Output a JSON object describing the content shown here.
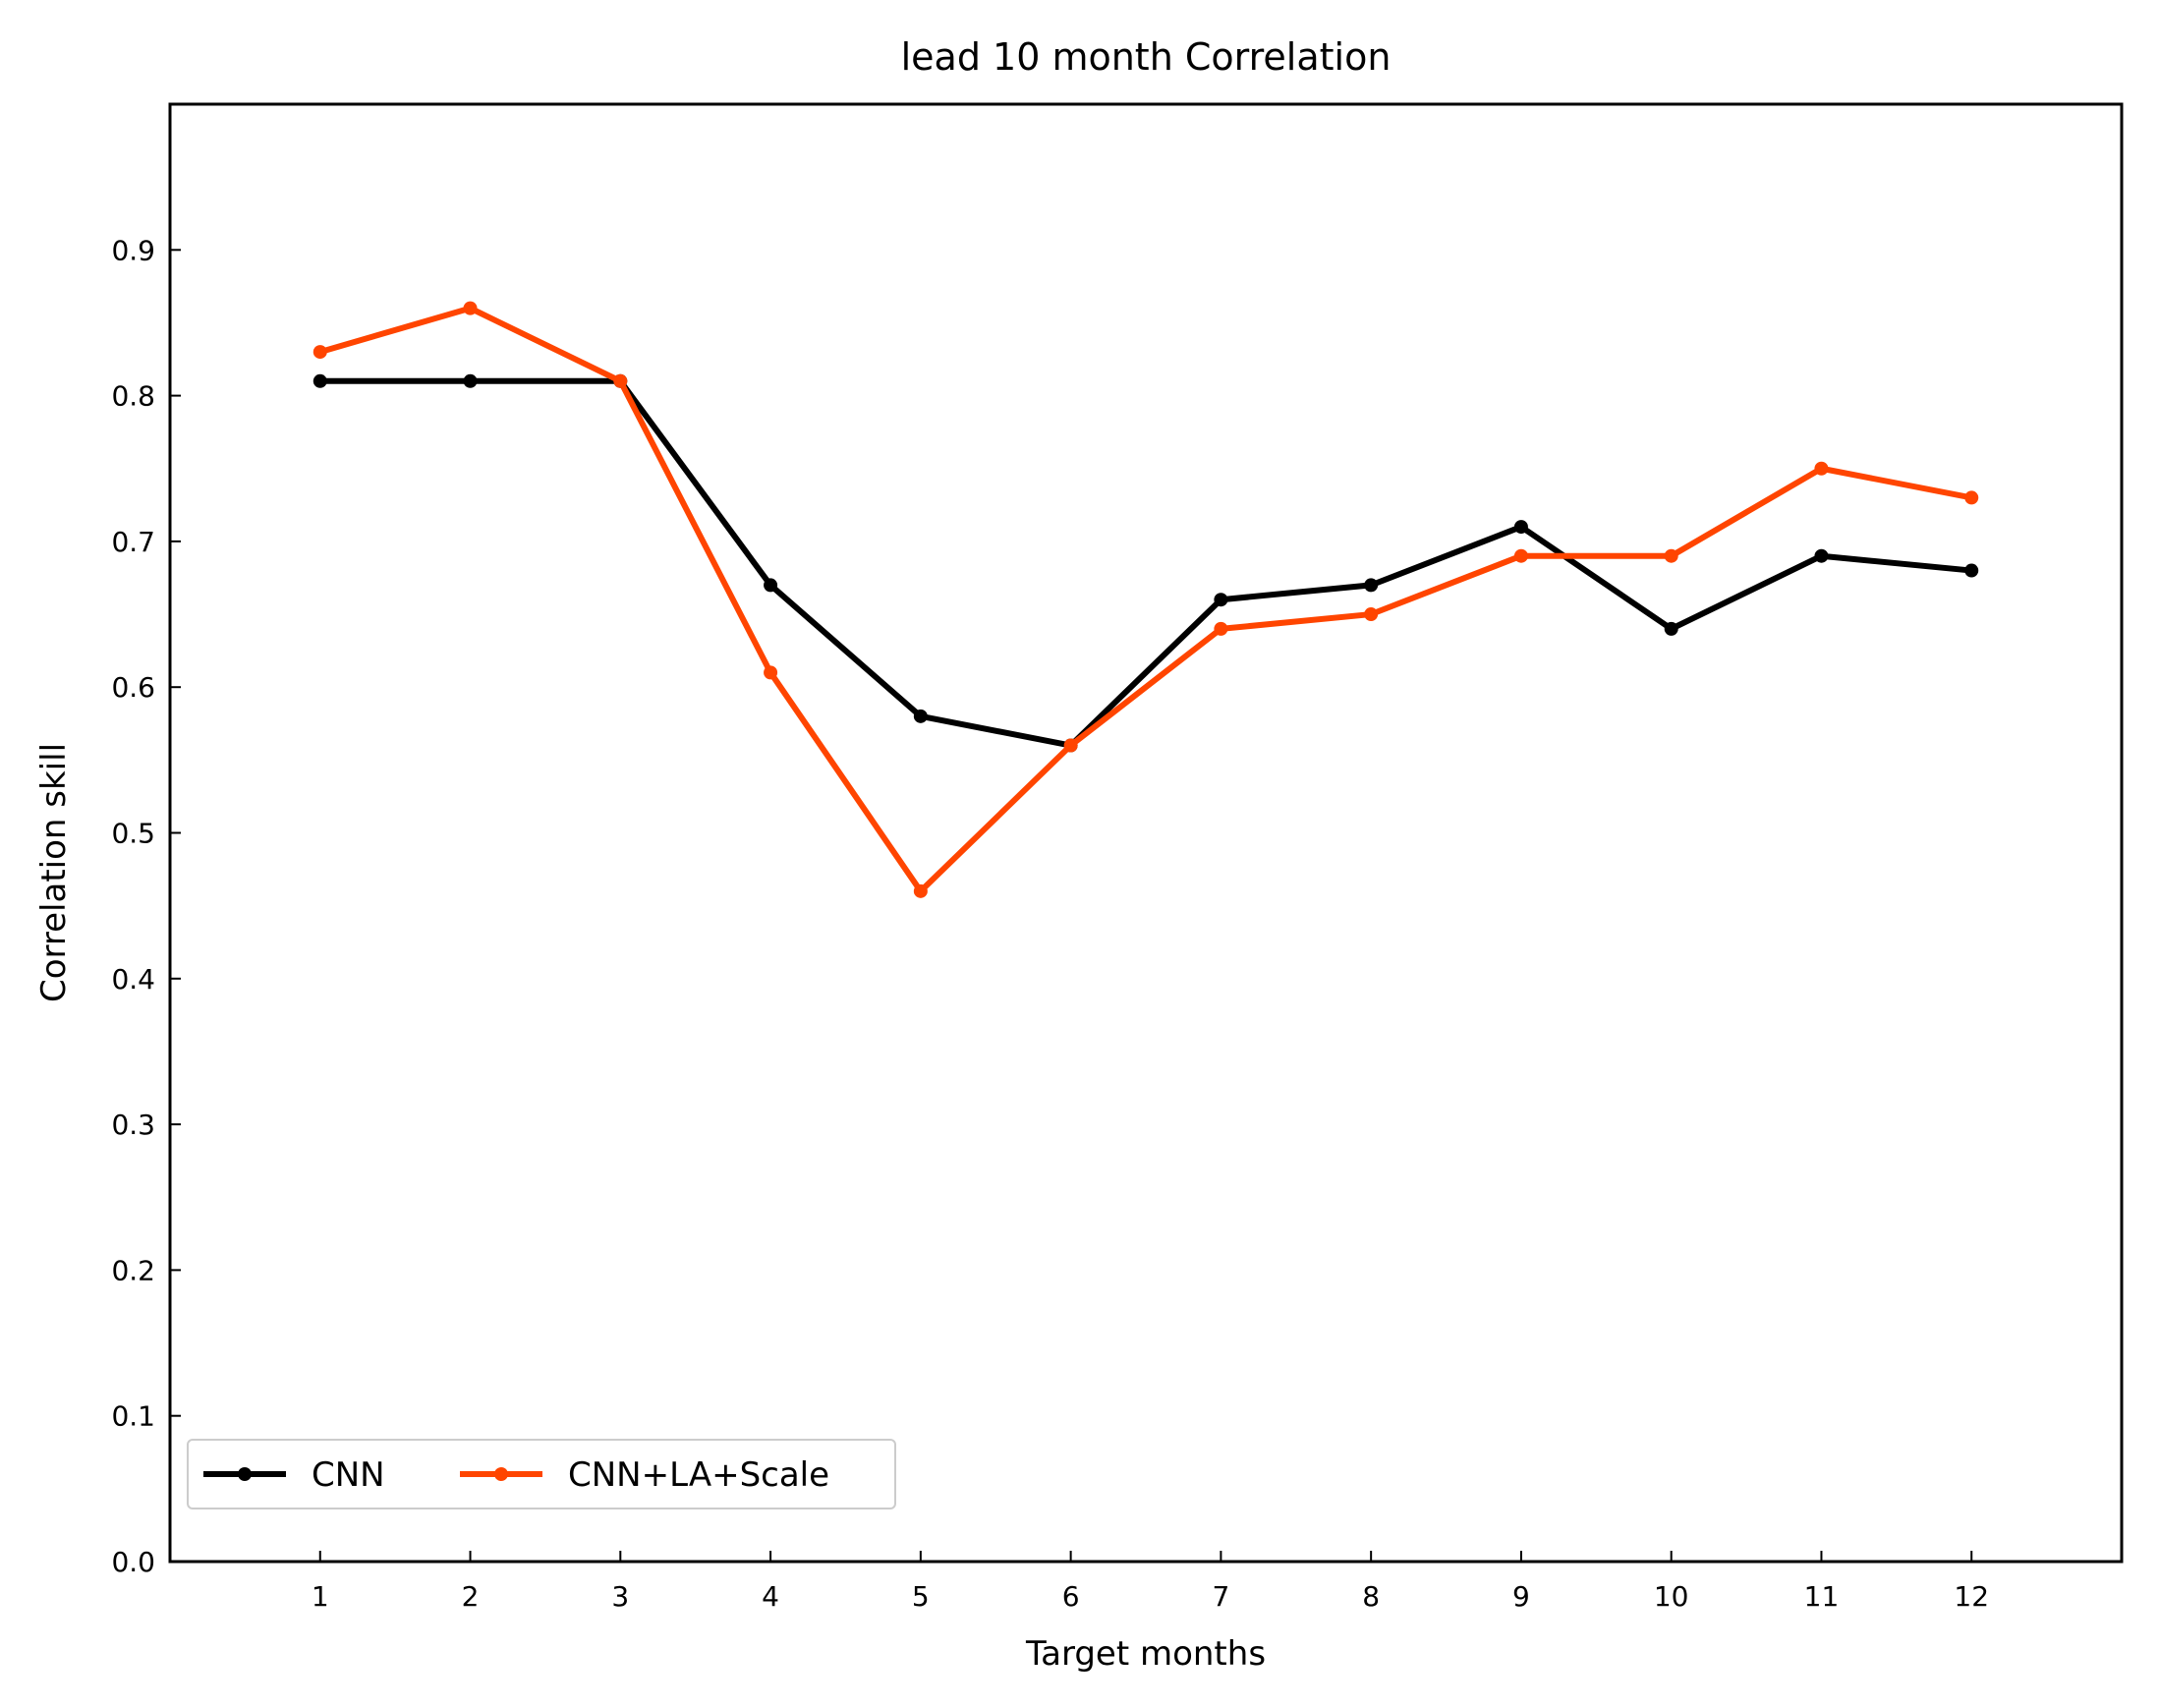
{
  "chart_data": {
    "type": "line",
    "title": "lead 10 month Correlation",
    "xlabel": "Target months",
    "ylabel": "Correlation skill",
    "x": [
      1,
      2,
      3,
      4,
      5,
      6,
      7,
      8,
      9,
      10,
      11,
      12
    ],
    "xlim": [
      0,
      13
    ],
    "ylim": [
      0.0,
      1.0
    ],
    "yticks": [
      0.0,
      0.1,
      0.2,
      0.3,
      0.4,
      0.5,
      0.6,
      0.7,
      0.8,
      0.9
    ],
    "ytick_labels": [
      "0.0",
      "0.1",
      "0.2",
      "0.3",
      "0.4",
      "0.5",
      "0.6",
      "0.7",
      "0.8",
      "0.9"
    ],
    "xtick_labels": [
      "1",
      "2",
      "3",
      "4",
      "5",
      "6",
      "7",
      "8",
      "9",
      "10",
      "11",
      "12"
    ],
    "grid": false,
    "legend_position": "lower-left",
    "series": [
      {
        "name": "CNN",
        "color": "#000000",
        "values": [
          0.81,
          0.81,
          0.81,
          0.67,
          0.58,
          0.56,
          0.66,
          0.67,
          0.71,
          0.64,
          0.69,
          0.68
        ]
      },
      {
        "name": "CNN+LA+Scale",
        "color": "#ff4500",
        "values": [
          0.83,
          0.86,
          0.81,
          0.61,
          0.46,
          0.56,
          0.64,
          0.65,
          0.69,
          0.69,
          0.75,
          0.73
        ]
      }
    ]
  }
}
